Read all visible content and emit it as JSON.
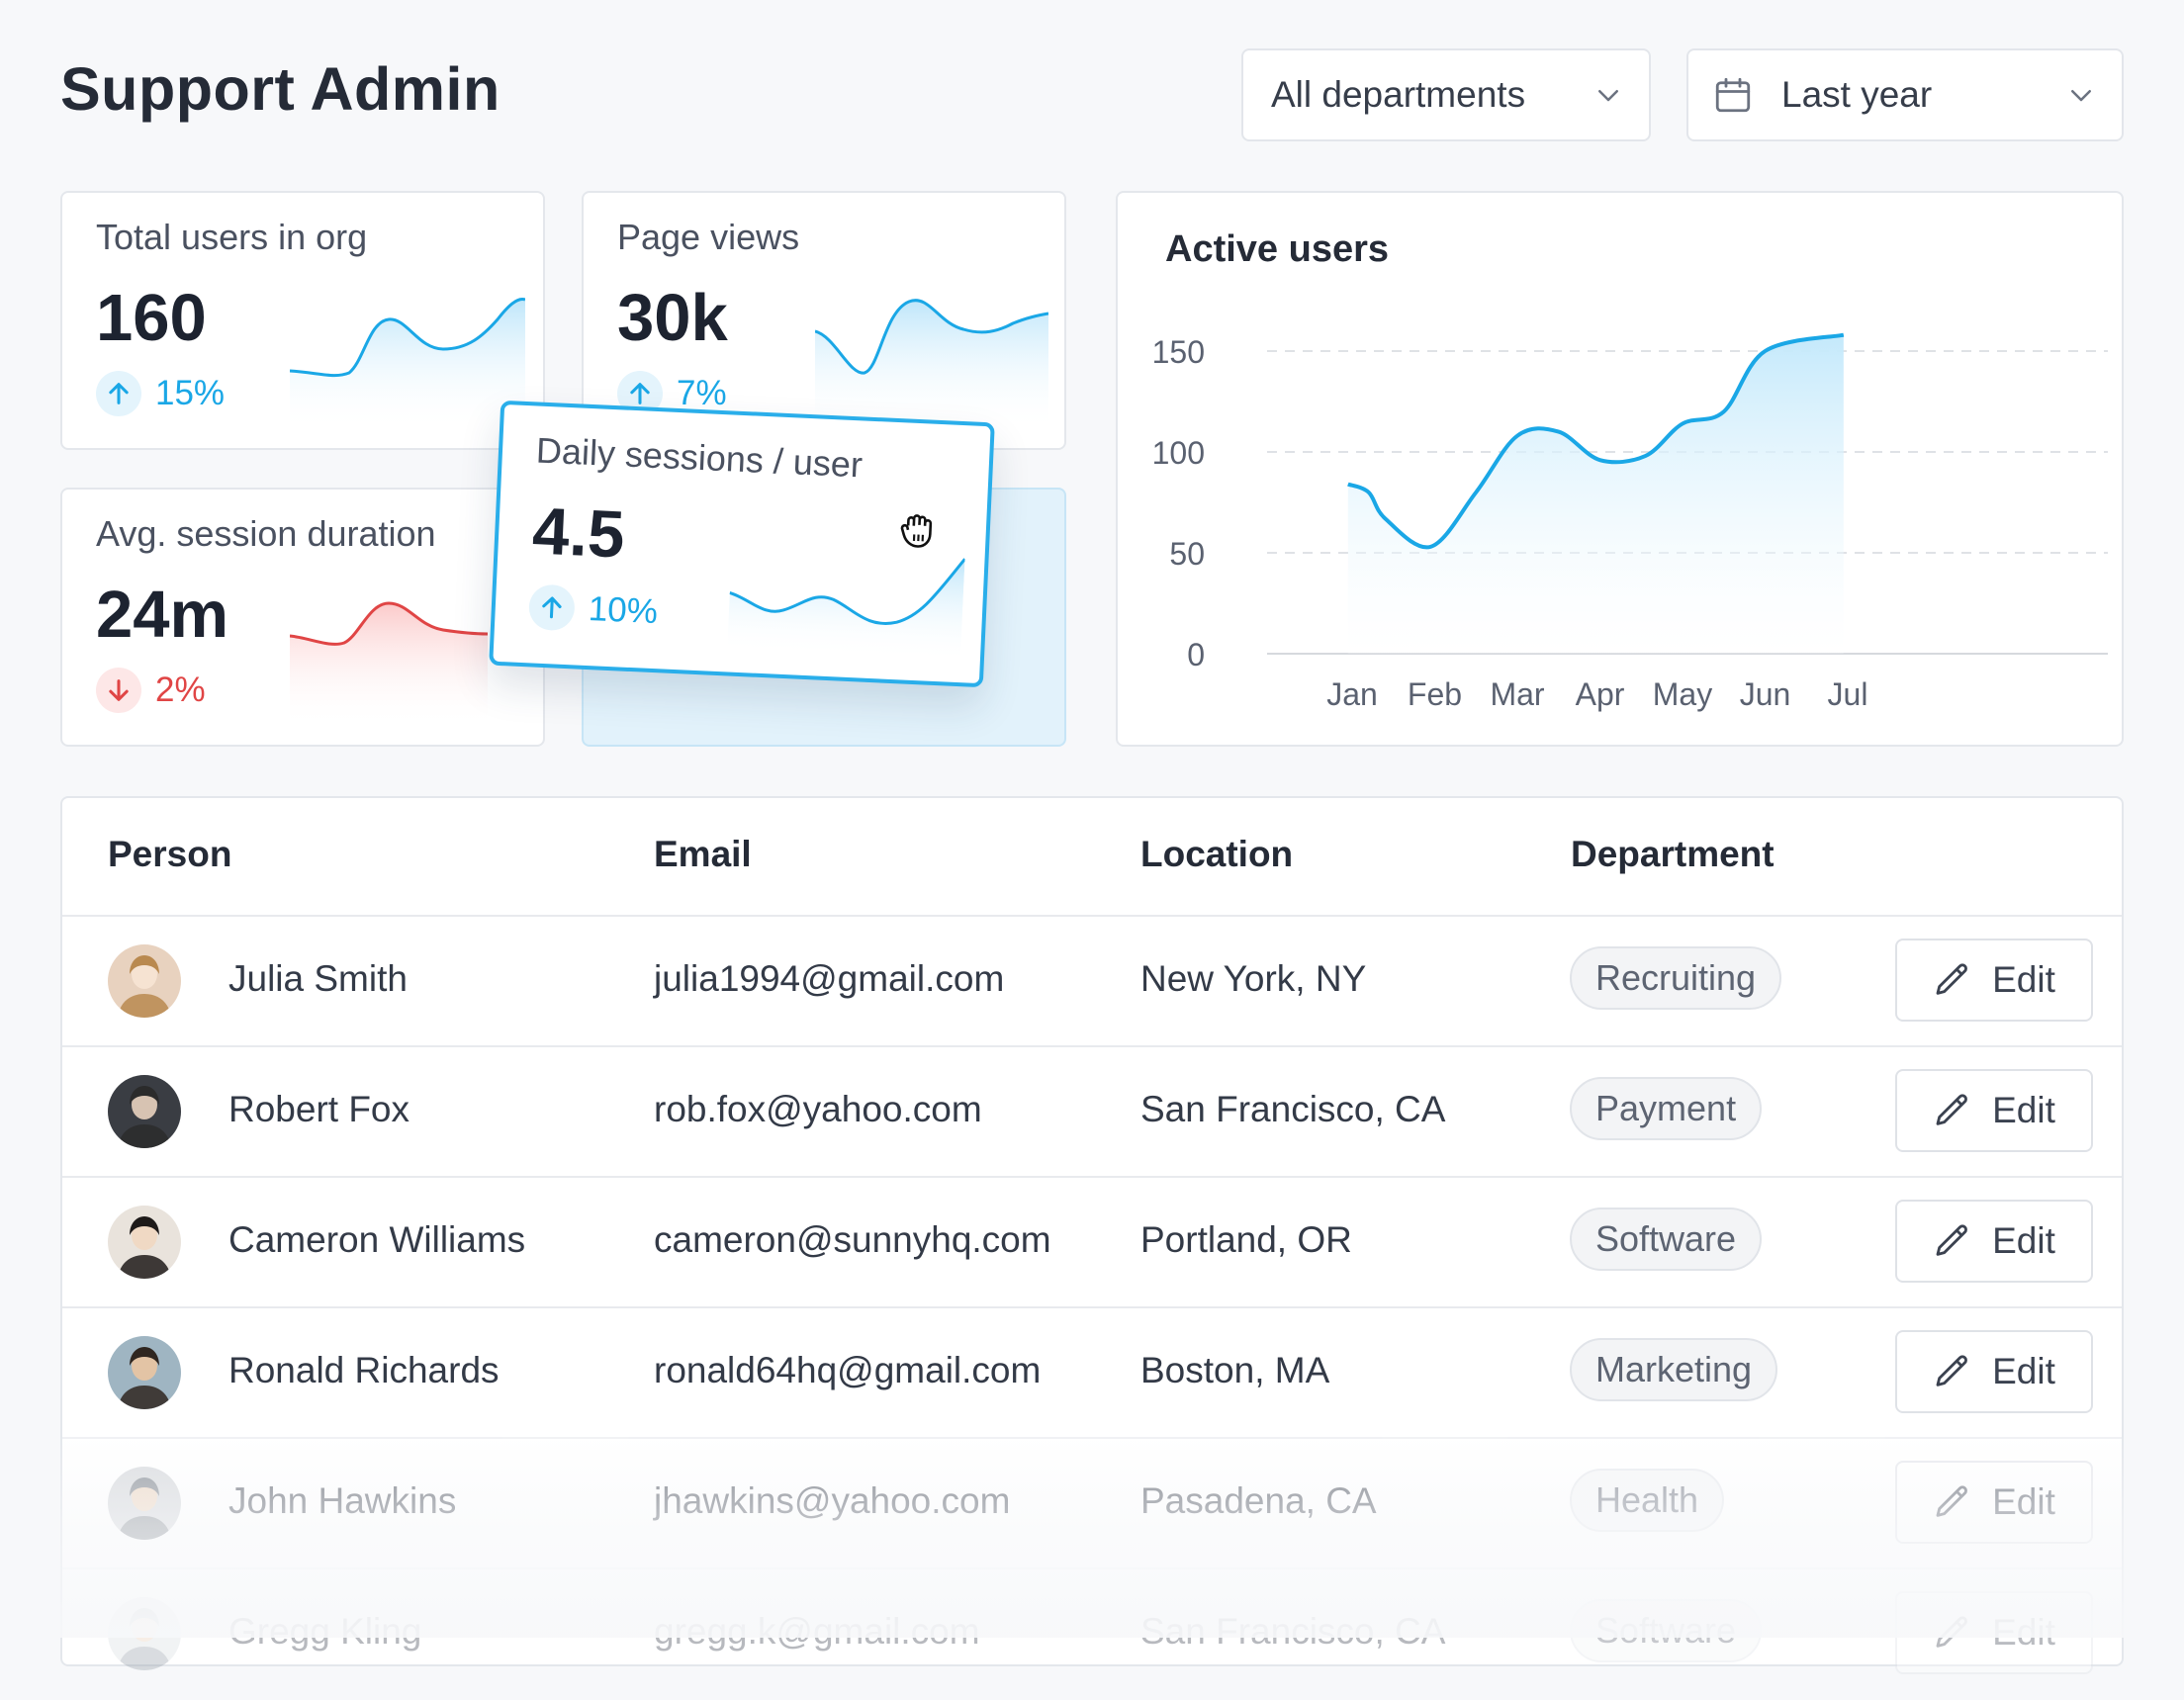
{
  "header": {
    "title": "Support Admin",
    "department_select": "All departments",
    "period_select": "Last year"
  },
  "kpis": [
    {
      "label": "Total users in org",
      "value": "160",
      "delta": "15%",
      "trend": "up"
    },
    {
      "label": "Page views",
      "value": "30k",
      "delta": "7%",
      "trend": "up"
    },
    {
      "label": "Avg. session duration",
      "value": "24m",
      "delta": "2%",
      "trend": "down"
    },
    {
      "label": "Daily sessions / user",
      "value": "4.5",
      "delta": "10%",
      "trend": "up"
    }
  ],
  "chart_data": {
    "type": "area",
    "title": "Active users",
    "categories": [
      "Jan",
      "Feb",
      "Mar",
      "Apr",
      "May",
      "Jun",
      "Jul"
    ],
    "x": [
      0.95,
      1.2,
      1.4,
      1.95,
      2.5,
      3.0,
      3.5,
      4.0,
      4.55,
      5.0,
      5.5,
      6.0,
      6.95
    ],
    "values": [
      84,
      80,
      67,
      53,
      80,
      108,
      110,
      96,
      98,
      114,
      120,
      150,
      158
    ],
    "yticks": [
      0,
      50,
      100,
      150
    ],
    "ylim": [
      0,
      160
    ],
    "grid": "horizontal dashed",
    "color": "#1aa7e6"
  },
  "table": {
    "headers": [
      "Person",
      "Email",
      "Location",
      "Department"
    ],
    "edit_label": "Edit",
    "rows": [
      {
        "name": "Julia Smith",
        "email": "julia1994@gmail.com",
        "location": "New York, NY",
        "department": "Recruiting"
      },
      {
        "name": "Robert Fox",
        "email": "rob.fox@yahoo.com",
        "location": "San Francisco, CA",
        "department": "Payment"
      },
      {
        "name": "Cameron Williams",
        "email": "cameron@sunnyhq.com",
        "location": "Portland, OR",
        "department": "Software"
      },
      {
        "name": "Ronald Richards",
        "email": "ronald64hq@gmail.com",
        "location": "Boston, MA",
        "department": "Marketing"
      },
      {
        "name": "John Hawkins",
        "email": "jhawkins@yahoo.com",
        "location": "Pasadena, CA",
        "department": "Health"
      },
      {
        "name": "Gregg Kling",
        "email": "gregg.k@gmail.com",
        "location": "San Francisco, CA",
        "department": "Software"
      }
    ]
  },
  "colors": {
    "accent": "#1aa7e6",
    "negative": "#e04545",
    "background": "#f7f8fa"
  }
}
